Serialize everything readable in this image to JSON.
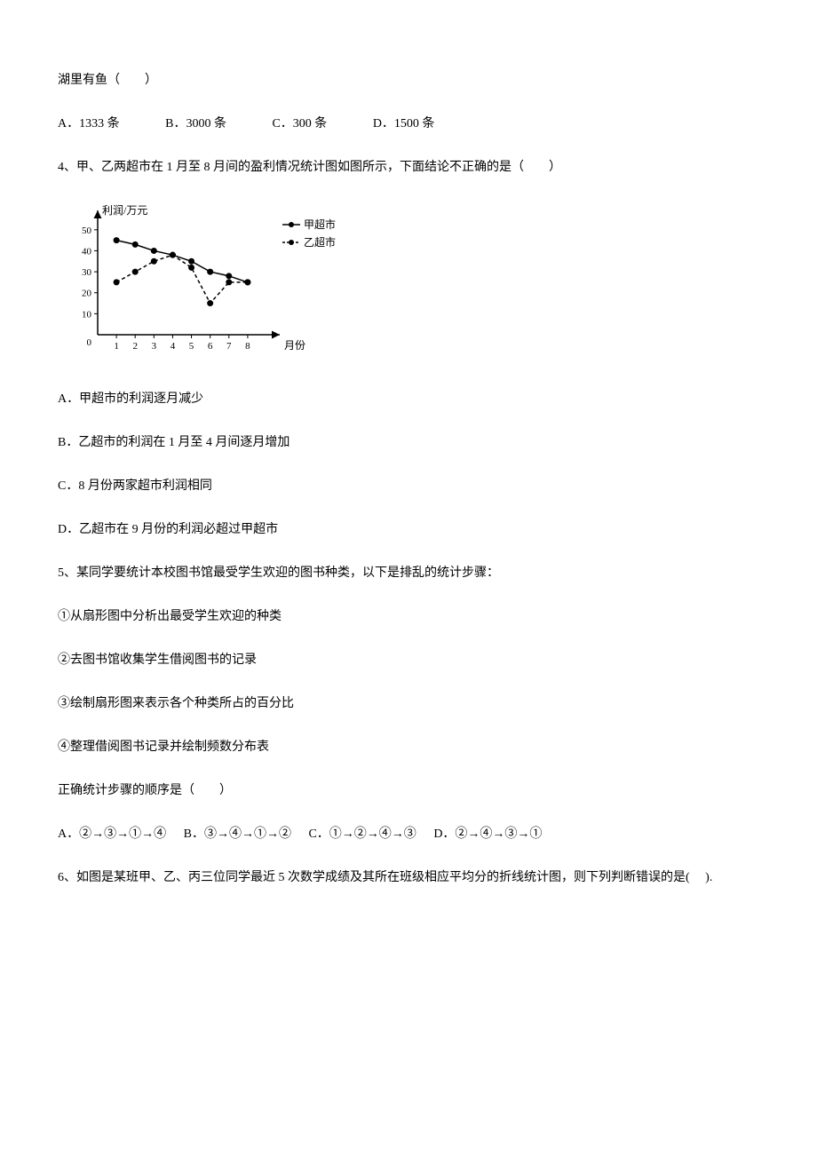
{
  "q3_fragment": {
    "stem": "湖里有鱼（　　）",
    "options": [
      {
        "label": "A．1333 条"
      },
      {
        "label": "B．3000 条"
      },
      {
        "label": "C．300 条"
      },
      {
        "label": "D．1500 条"
      }
    ]
  },
  "q4": {
    "stem": "4、甲、乙两超市在 1 月至 8 月间的盈利情况统计图如图所示，下面结论不正确的是（　　）",
    "chart": {
      "ylabel": "利润/万元",
      "xlabel": "月份",
      "legend": [
        {
          "label": "甲超市",
          "style": "solid"
        },
        {
          "label": "乙超市",
          "style": "dashed"
        }
      ],
      "yticks": [
        10,
        20,
        30,
        40,
        50
      ],
      "xticks": [
        1,
        2,
        3,
        4,
        5,
        6,
        7,
        8
      ],
      "series": {
        "jia": [
          45,
          43,
          40,
          38,
          35,
          30,
          28,
          25
        ],
        "yi": [
          25,
          30,
          35,
          38,
          32,
          15,
          25,
          25
        ]
      },
      "colors": {
        "axis": "#000000",
        "line": "#000000",
        "marker": "#000000",
        "arrow": "#000000"
      },
      "xlim": [
        0,
        9
      ],
      "ylim": [
        0,
        55
      ]
    },
    "options": [
      "A．甲超市的利润逐月减少",
      "B．乙超市的利润在 1 月至 4 月间逐月增加",
      "C．8 月份两家超市利润相同",
      "D．乙超市在 9 月份的利润必超过甲超市"
    ]
  },
  "q5": {
    "stem": "5、某同学要统计本校图书馆最受学生欢迎的图书种类，以下是排乱的统计步骤：",
    "steps": [
      "①从扇形图中分析出最受学生欢迎的种类",
      "②去图书馆收集学生借阅图书的记录",
      "③绘制扇形图来表示各个种类所占的百分比",
      "④整理借阅图书记录并绘制频数分布表"
    ],
    "ask": "正确统计步骤的顺序是（　　）",
    "options": [
      {
        "label": "A．②→③→①→④"
      },
      {
        "label": "B．③→④→①→②"
      },
      {
        "label": "C．①→②→④→③"
      },
      {
        "label": "D．②→④→③→①"
      }
    ]
  },
  "q6": {
    "stem": "6、如图是某班甲、乙、丙三位同学最近 5 次数学成绩及其所在班级相应平均分的折线统计图，则下列判断错误的是(　  )."
  }
}
